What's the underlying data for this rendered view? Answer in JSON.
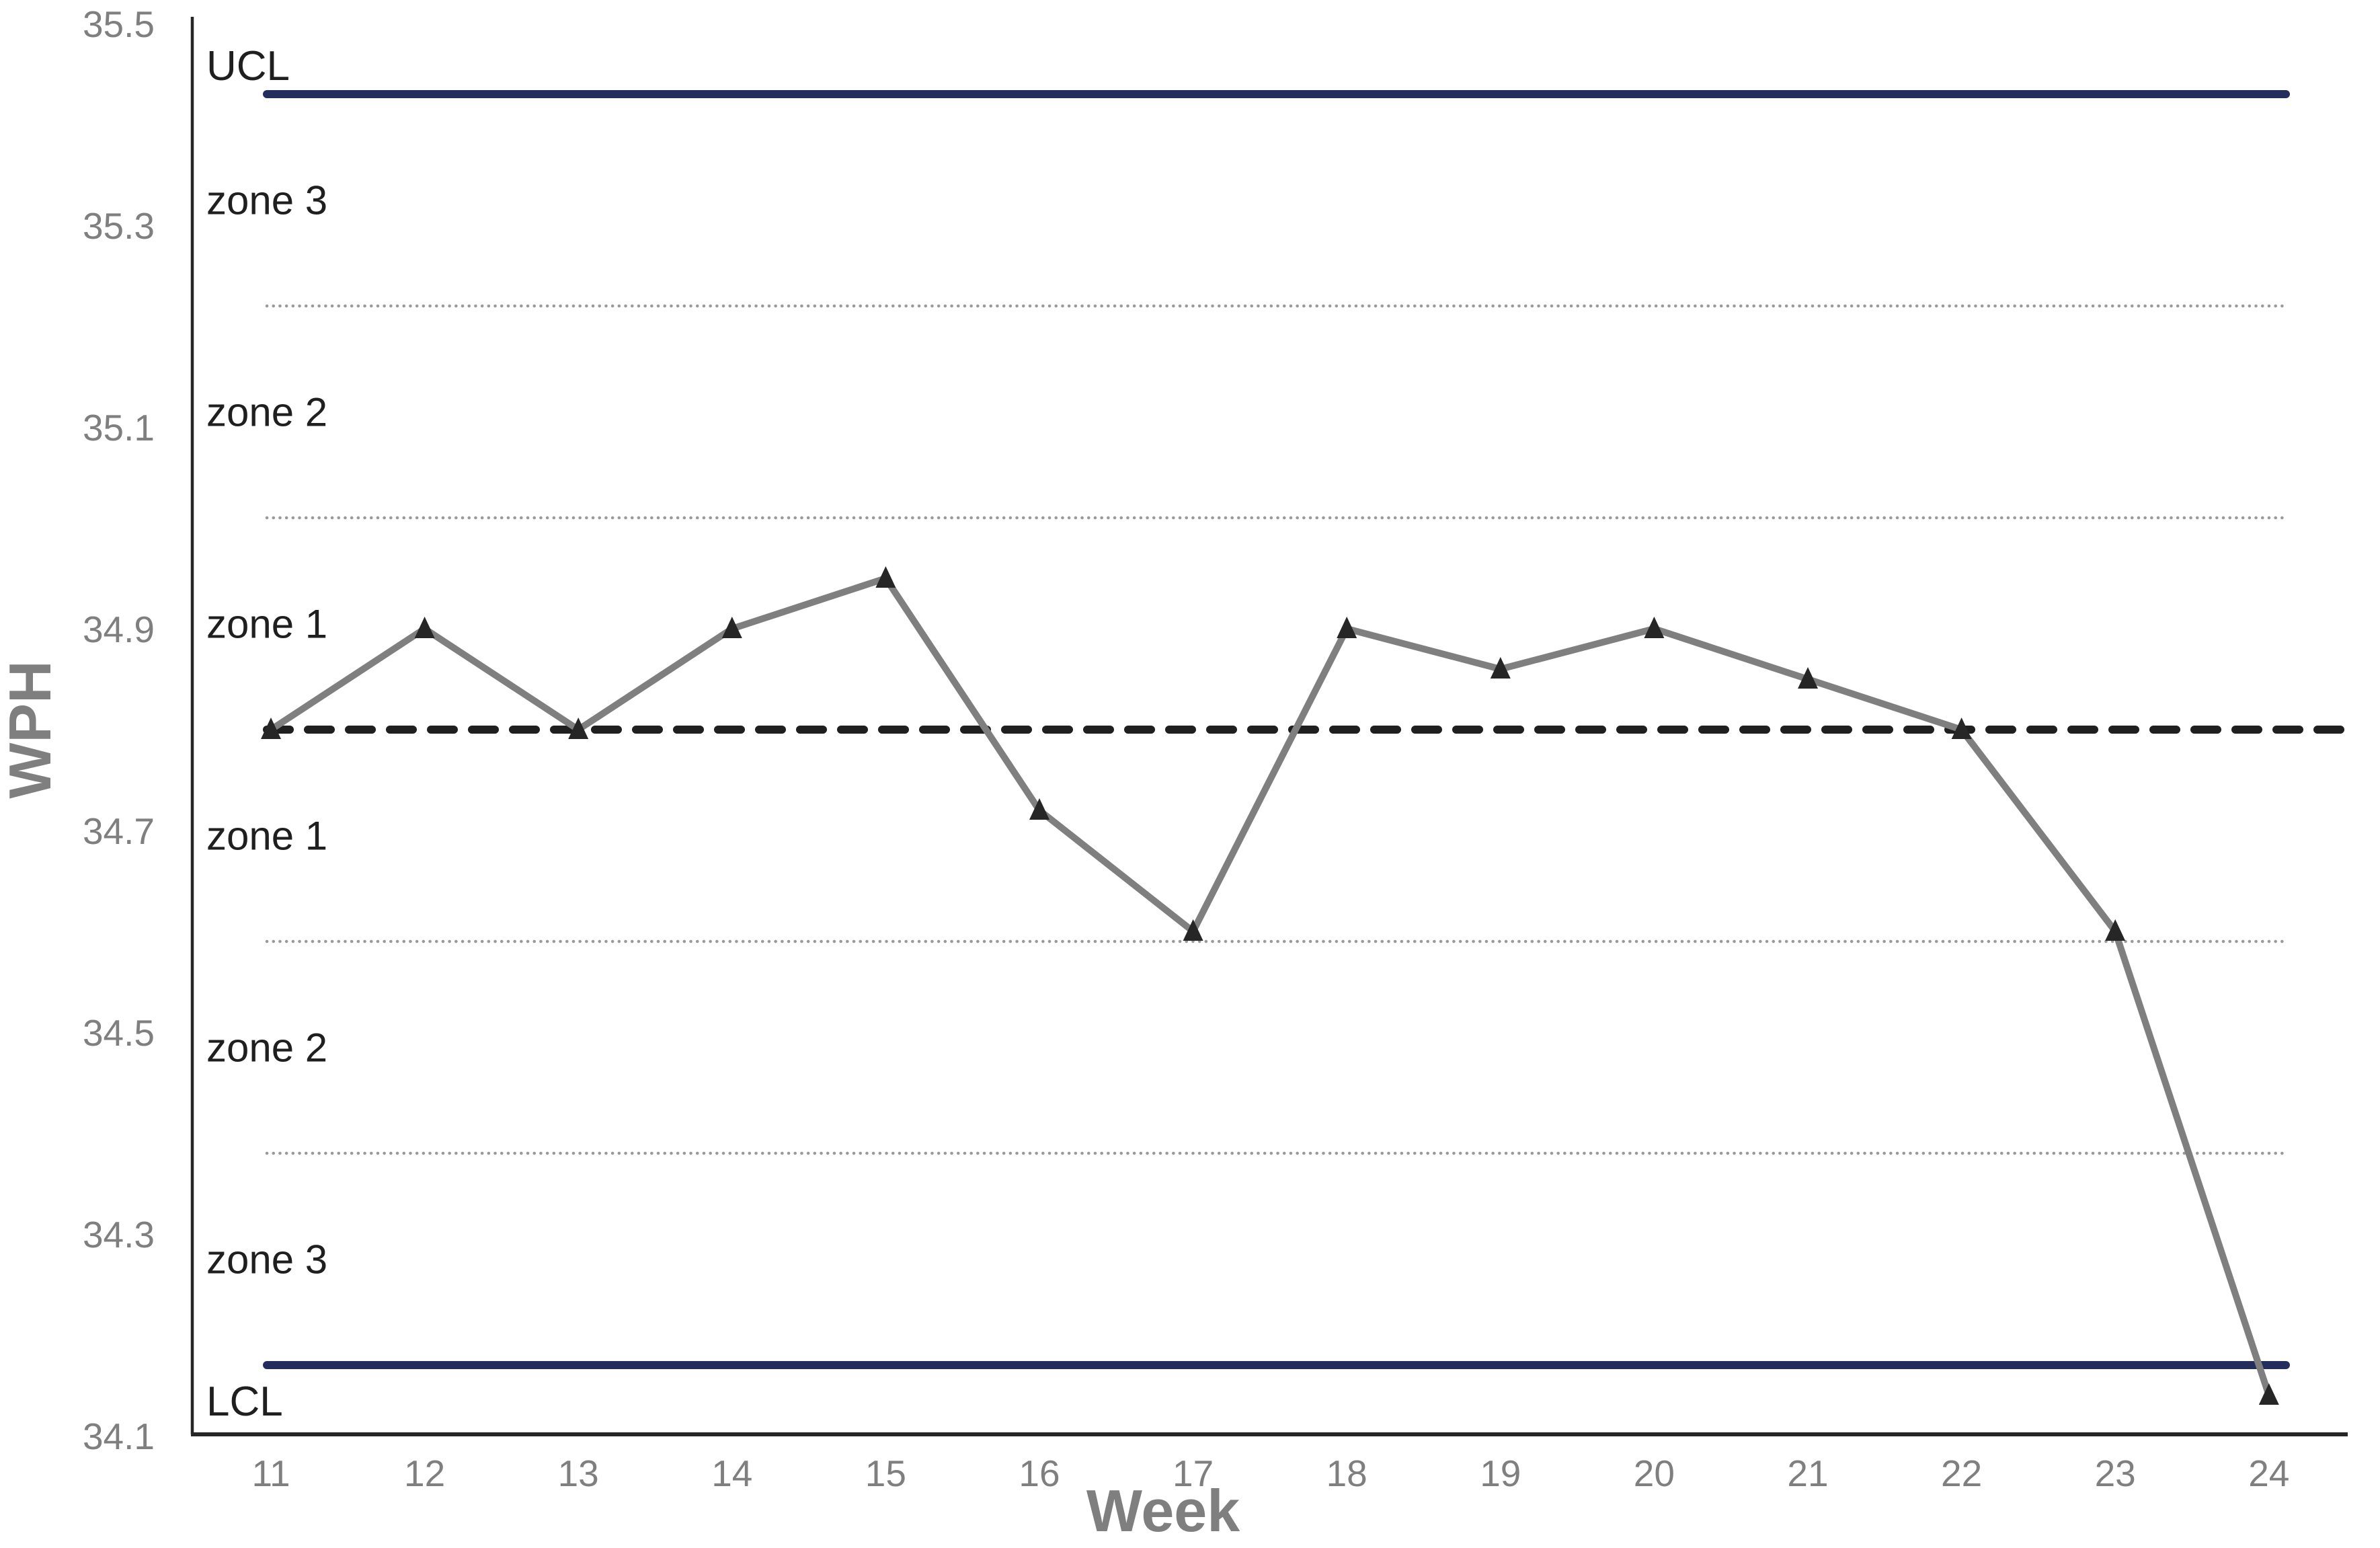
{
  "chart_data": {
    "type": "line",
    "title": "",
    "xlabel": "Week",
    "ylabel": "WPH",
    "weeks": [
      11,
      12,
      13,
      14,
      15,
      16,
      17,
      18,
      19,
      20,
      21,
      22,
      23,
      24
    ],
    "series": [
      {
        "name": "WPH",
        "values": [
          34.8,
          34.9,
          34.8,
          34.9,
          34.95,
          34.72,
          34.6,
          34.9,
          34.86,
          34.9,
          34.85,
          34.8,
          34.6,
          34.14
        ]
      }
    ],
    "center_line": 34.8,
    "ucl": 35.43,
    "lcl": 34.17,
    "ucl_label": "UCL",
    "lcl_label": "LCL",
    "zone_boundaries": [
      35.22,
      35.01,
      34.59,
      34.38
    ],
    "zone_labels": [
      {
        "text": "zone 3",
        "value": 35.325
      },
      {
        "text": "zone 2",
        "value": 35.115
      },
      {
        "text": "zone 1",
        "value": 34.905
      },
      {
        "text": "zone 1",
        "value": 34.695
      },
      {
        "text": "zone 2",
        "value": 34.485
      },
      {
        "text": "zone 3",
        "value": 34.275
      }
    ],
    "yticks": [
      35.5,
      35.3,
      35.1,
      34.9,
      34.7,
      34.5,
      34.3,
      34.1
    ],
    "ylim": [
      34.1,
      35.5
    ],
    "xlim": [
      11,
      24
    ],
    "grid": "off",
    "legend": "none",
    "marker": "triangle"
  },
  "colors": {
    "control_limit_line": "#242e5c",
    "series_line": "#7f7f7f",
    "marker_fill": "#262626",
    "center_line": "#1f1f1f",
    "zone_boundary_line": "#9a9a9a",
    "axis_line": "#262626",
    "tick_text": "#7f7f7f",
    "title_text": "#7f7f7f",
    "zone_text": "#1f1f1f"
  }
}
